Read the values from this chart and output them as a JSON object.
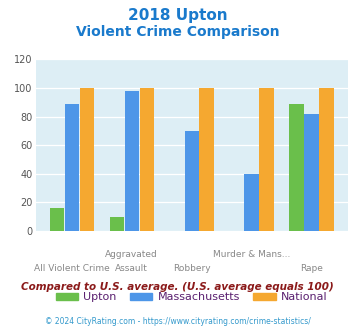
{
  "title_line1": "2018 Upton",
  "title_line2": "Violent Crime Comparison",
  "upton": [
    16,
    10,
    0,
    0,
    89
  ],
  "massachusetts": [
    89,
    98,
    70,
    40,
    82
  ],
  "national": [
    100,
    100,
    100,
    100,
    100
  ],
  "upton_color": "#6abf4b",
  "mass_color": "#4d96e8",
  "national_color": "#f5a830",
  "bg_color": "#ddeef5",
  "ylim": [
    0,
    120
  ],
  "yticks": [
    0,
    20,
    40,
    60,
    80,
    100,
    120
  ],
  "xtick_top": [
    "",
    "Aggravated",
    "",
    "Murder & Mans...",
    ""
  ],
  "xtick_bottom": [
    "All Violent Crime",
    "Assault",
    "Robbery",
    "",
    "Rape"
  ],
  "footnote": "Compared to U.S. average. (U.S. average equals 100)",
  "copyright": "© 2024 CityRating.com - https://www.cityrating.com/crime-statistics/",
  "title_color": "#1a7acc",
  "footnote_color": "#8b1a1a",
  "copyright_color": "#3399cc",
  "legend_label_color": "#5a2070"
}
